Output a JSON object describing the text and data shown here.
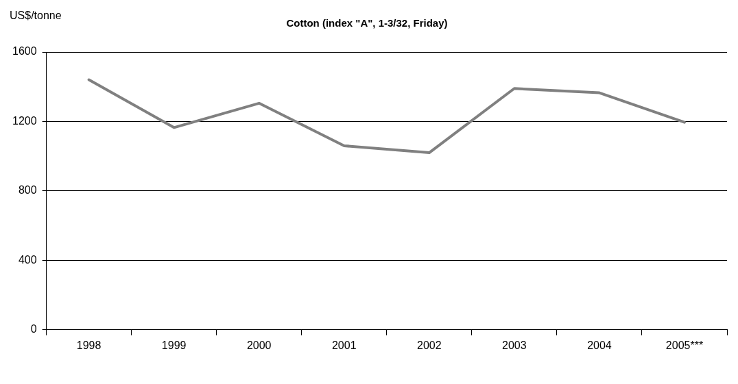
{
  "chart_data": {
    "type": "line",
    "title": "Cotton (index \"A\", 1-3/32, Friday)",
    "ylabel": "US$/tonne",
    "categories": [
      "1998",
      "1999",
      "2000",
      "2001",
      "2002",
      "2003",
      "2004",
      "2005***"
    ],
    "series": [
      {
        "color": "#808080",
        "values": [
          1440,
          1165,
          1305,
          1060,
          1020,
          1390,
          1365,
          1195
        ]
      }
    ],
    "ylim": [
      0,
      1600
    ],
    "yticks": [
      0,
      400,
      800,
      1200,
      1600
    ],
    "grid": "y"
  }
}
